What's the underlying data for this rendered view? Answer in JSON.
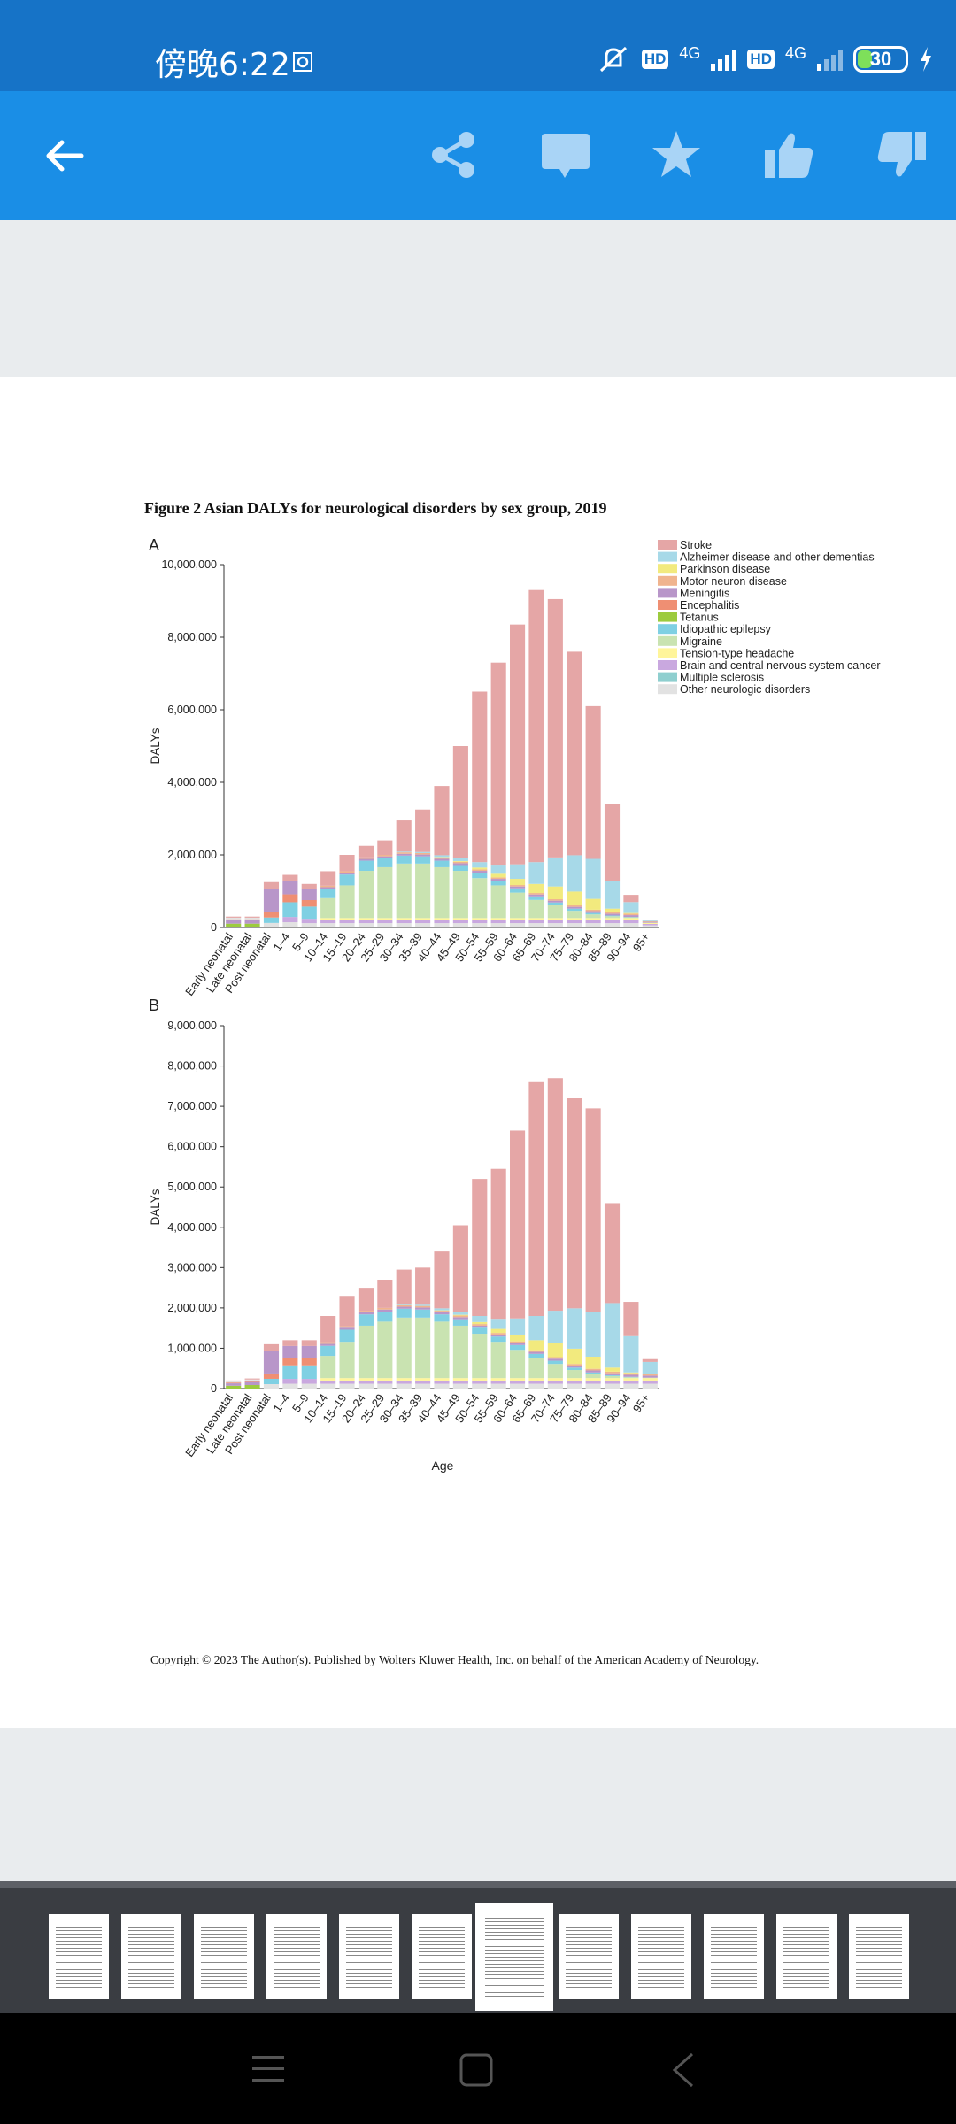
{
  "status_bar": {
    "time": "傍晚6:22",
    "network1": "4G",
    "network2": "4G",
    "hd1": "HD",
    "hd2": "HD",
    "battery": "30"
  },
  "toolbar": {
    "icons": [
      "back-arrow-icon",
      "share-icon",
      "comment-icon",
      "star-icon",
      "thumb-up-icon",
      "thumb-down-icon"
    ]
  },
  "document": {
    "figure_title": "Figure 2 Asian DALYs for neurological disorders by sex group, 2019",
    "copyright": "Copyright © 2023 The Author(s). Published by Wolters Kluwer Health, Inc. on behalf of the American Academy of Neurology."
  },
  "chart_data": [
    {
      "type": "bar",
      "stacked": true,
      "panel_label": "A",
      "ylabel": "DALYs",
      "xlabel": "",
      "ylim": [
        0,
        10000000
      ],
      "yticks": [
        "0",
        "2,000,000",
        "4,000,000",
        "6,000,000",
        "8,000,000",
        "10,000,000"
      ],
      "categories": [
        "Early neonatal",
        "Late neonatal",
        "Post neonatal",
        "1–4",
        "5–9",
        "10–14",
        "15–19",
        "20–24",
        "25–29",
        "30–34",
        "35–39",
        "40–44",
        "45–49",
        "50–54",
        "55–59",
        "60–64",
        "65–69",
        "70–74",
        "75–79",
        "80–84",
        "85–89",
        "90–94",
        "95+"
      ],
      "legend": [
        "Stroke",
        "Alzheimer disease and other dementias",
        "Parkinson disease",
        "Motor neuron disease",
        "Meningitis",
        "Encephalitis",
        "Tetanus",
        "Idiopathic epilepsy",
        "Migraine",
        "Tension-type headache",
        "Brain and central nervous system cancer",
        "Multiple sclerosis",
        "Other neurologic disorders"
      ],
      "colors": [
        "#e5a6a6",
        "#a7d9e8",
        "#f2ea7e",
        "#f0b48e",
        "#b896c9",
        "#ef8f73",
        "#9ccb3e",
        "#7fd0e3",
        "#c9e3b1",
        "#fff59a",
        "#c9a8df",
        "#8fcfcf",
        "#e2e2e2"
      ],
      "totals": [
        300000,
        300000,
        1250000,
        1450000,
        1200000,
        1550000,
        2000000,
        2250000,
        2400000,
        2950000,
        3250000,
        3900000,
        5000000,
        6500000,
        7300000,
        8350000,
        9300000,
        9050000,
        7600000,
        6100000,
        3400000,
        900000,
        200000
      ]
    },
    {
      "type": "bar",
      "stacked": true,
      "panel_label": "B",
      "ylabel": "DALYs",
      "xlabel": "Age",
      "ylim": [
        0,
        9000000
      ],
      "yticks": [
        "0",
        "1,000,000",
        "2,000,000",
        "3,000,000",
        "4,000,000",
        "5,000,000",
        "6,000,000",
        "7,000,000",
        "8,000,000",
        "9,000,000"
      ],
      "categories": [
        "Early neonatal",
        "Late neonatal",
        "Post neonatal",
        "1–4",
        "5–9",
        "10–14",
        "15–19",
        "20–24",
        "25–29",
        "30–34",
        "35–39",
        "40–44",
        "45–49",
        "50–54",
        "55–59",
        "60–64",
        "65–69",
        "70–74",
        "75–79",
        "80–84",
        "85–89",
        "90–94",
        "95+"
      ],
      "totals": [
        200000,
        250000,
        1100000,
        1200000,
        1200000,
        1800000,
        2300000,
        2500000,
        2700000,
        2950000,
        3000000,
        3400000,
        4050000,
        5200000,
        5450000,
        6400000,
        7600000,
        7700000,
        7200000,
        6950000,
        4600000,
        2150000,
        730000
      ]
    }
  ],
  "thumbnails": {
    "count": 12,
    "active_index": 6
  }
}
